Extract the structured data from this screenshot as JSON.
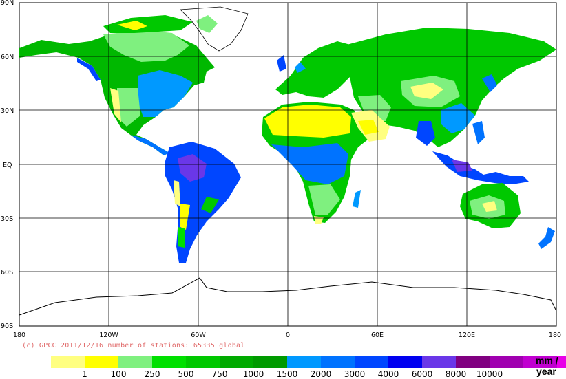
{
  "map": {
    "lat_labels": [
      "90N",
      "60N",
      "30N",
      "EQ",
      "30S",
      "60S",
      "90S"
    ],
    "lon_labels": [
      "180",
      "120W",
      "60W",
      "0",
      "60E",
      "120E",
      "180"
    ],
    "ocean_color": "#ffffff",
    "grid_color": "#000000"
  },
  "credit": "(c) GPCC 2011/12/16 number of stations: 65335 global",
  "legend": {
    "colors": [
      "#ffff80",
      "#ffff00",
      "#7ff07f",
      "#00e000",
      "#00c800",
      "#00aa00",
      "#009a00",
      "#0099ff",
      "#0073ff",
      "#0046ff",
      "#0000f0",
      "#6a37e8",
      "#800080",
      "#a000b0",
      "#c000d0",
      "#e800e8"
    ],
    "ticks": [
      "1",
      "100",
      "250",
      "500",
      "750",
      "1000",
      "1500",
      "2000",
      "3000",
      "4000",
      "6000",
      "8000",
      "10000"
    ],
    "unit_line1": "mm /",
    "unit_line2": "year"
  }
}
